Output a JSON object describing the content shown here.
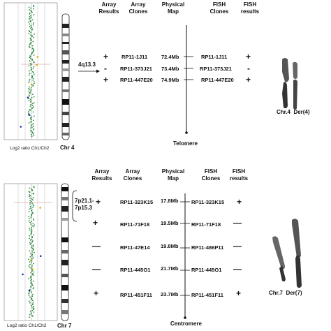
{
  "panel_top": {
    "headers": {
      "array_results": "Array\nResults",
      "array_clones": "Array\nClones",
      "physical_map": "Physical\nMap",
      "fish_clones": "FISH\nClones",
      "fish_results": "FISH\nresults"
    },
    "band": "4q13.3",
    "rows": [
      {
        "array_result": "+",
        "array_clone": "RP11-1J11",
        "map": "72.4Mb",
        "fish_clone": "RP11-1J11",
        "fish_result": "+"
      },
      {
        "array_result": "-",
        "array_clone": "RP11-373J21",
        "map": "73.4Mb",
        "fish_clone": "RP11-373J21",
        "fish_result": "-"
      },
      {
        "array_result": "+",
        "array_clone": "RP11-447E20",
        "map": "74.9Mb",
        "fish_clone": "RP11-447E20",
        "fish_result": "+"
      }
    ],
    "map_end_label": "Telomere",
    "plot_label": "Log2 ratio Ch1/Ch2",
    "chr_label": "Chr 4",
    "karyotype_label": "Chr.4  Der(4)"
  },
  "panel_bottom": {
    "headers": {
      "array_results": "Array\nResults",
      "array_clones": "Array\nClones",
      "physical_map": "Physical\nMap",
      "fish_clones": "FISH\nClones",
      "fish_results": "FISH\nresults"
    },
    "band": "7p21.1-\n7p15.3",
    "rows": [
      {
        "array_result": "+",
        "array_clone": "RP11-323K15",
        "map": "17.8Mb",
        "fish_clone": "RP11-323K15",
        "fish_result": "+"
      },
      {
        "array_result": "+",
        "array_clone": "RP11-71F18",
        "map": "19.5Mb",
        "fish_clone": "RP11-71F18",
        "fish_result": "—"
      },
      {
        "array_result": "—",
        "array_clone": "RP11-47E14",
        "map": "19.8Mb",
        "fish_clone": "RP11-486P11",
        "fish_result": "—"
      },
      {
        "array_result": "—",
        "array_clone": "RP11-445O1",
        "map": "21.7Mb",
        "fish_clone": "RP11-445O1",
        "fish_result": "—"
      },
      {
        "array_result": "+",
        "array_clone": "RP11-451F11",
        "map": "23.7Mb",
        "fish_clone": "RP11-451F11",
        "fish_result": "+"
      }
    ],
    "map_end_label": "Centromere",
    "plot_label": "Log2 ratio Ch1/Ch2",
    "chr_label": "Chr 7",
    "karyotype_label": "Chr.7  Der(7)"
  },
  "colors": {
    "plot_points": "#2a8a3a",
    "plot_outlier_blue": "#2233aa",
    "plot_outlier_yellow": "#c8b400",
    "line": "#111111"
  }
}
